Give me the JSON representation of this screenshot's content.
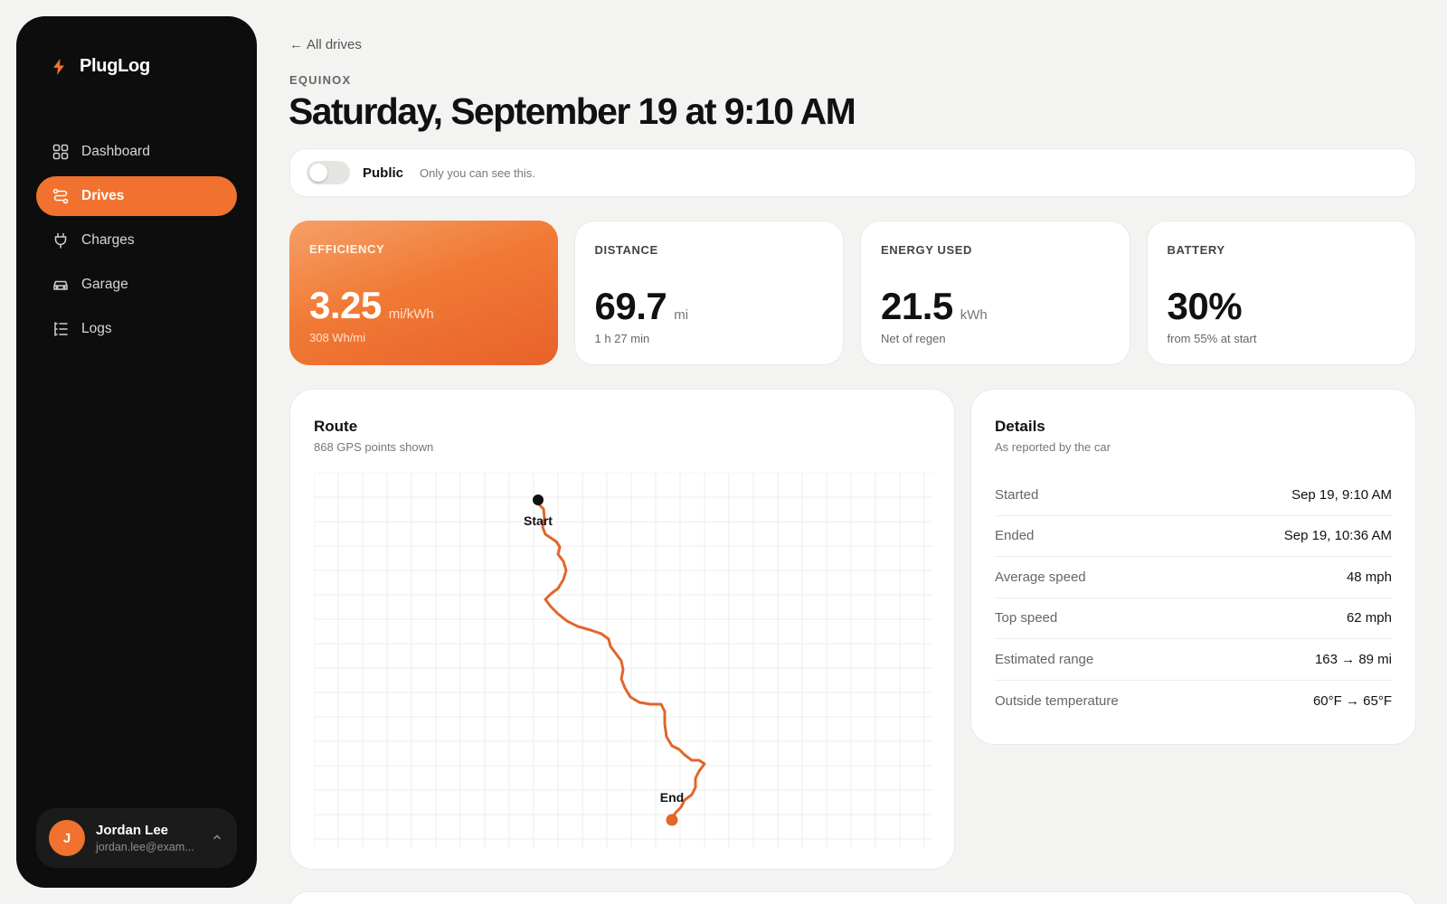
{
  "colors": {
    "accent": "#f0722e",
    "sidebar_bg": "#0d0d0d",
    "page_bg": "#f3f3f1",
    "route_line": "#e0662a",
    "start_marker": "#111111"
  },
  "app": {
    "name": "PlugLog",
    "logo_icon": "bolt-icon"
  },
  "sidebar": {
    "items": [
      {
        "label": "Dashboard",
        "icon": "grid-icon",
        "active": false
      },
      {
        "label": "Drives",
        "icon": "route-icon",
        "active": true
      },
      {
        "label": "Charges",
        "icon": "plug-icon",
        "active": false
      },
      {
        "label": "Garage",
        "icon": "car-icon",
        "active": false
      },
      {
        "label": "Logs",
        "icon": "list-icon",
        "active": false
      }
    ],
    "user": {
      "initial": "J",
      "name": "Jordan Lee",
      "email": "jordan.lee@exam..."
    }
  },
  "header": {
    "back_label": "All drives",
    "vehicle": "EQUINOX",
    "title": "Saturday, September 19 at 9:10 AM"
  },
  "share": {
    "toggle_on": false,
    "label": "Public",
    "note": "Only you can see this."
  },
  "stats": [
    {
      "label": "EFFICIENCY",
      "value": "3.25",
      "unit": "mi/kWh",
      "sub": "308 Wh/mi"
    },
    {
      "label": "DISTANCE",
      "value": "69.7",
      "unit": "mi",
      "sub": "1 h 27 min"
    },
    {
      "label": "ENERGY USED",
      "value": "21.5",
      "unit": "kWh",
      "sub": "Net of regen"
    },
    {
      "label": "BATTERY",
      "value": "30%",
      "unit": "",
      "sub": "from 55% at start"
    }
  ],
  "route": {
    "title": "Route",
    "subtitle": "868 GPS points shown",
    "start_label": "Start",
    "end_label": "End"
  },
  "details": {
    "title": "Details",
    "subtitle": "As reported by the car",
    "rows": [
      {
        "key": "Started",
        "value": "Sep 19, 9:10 AM"
      },
      {
        "key": "Ended",
        "value": "Sep 19, 10:36 AM"
      },
      {
        "key": "Average speed",
        "value": "48 mph"
      },
      {
        "key": "Top speed",
        "value": "62 mph"
      },
      {
        "key": "Estimated range",
        "value": "163 → 89 mi"
      },
      {
        "key": "Outside temperature",
        "value": "60°F → 65°F"
      }
    ]
  }
}
